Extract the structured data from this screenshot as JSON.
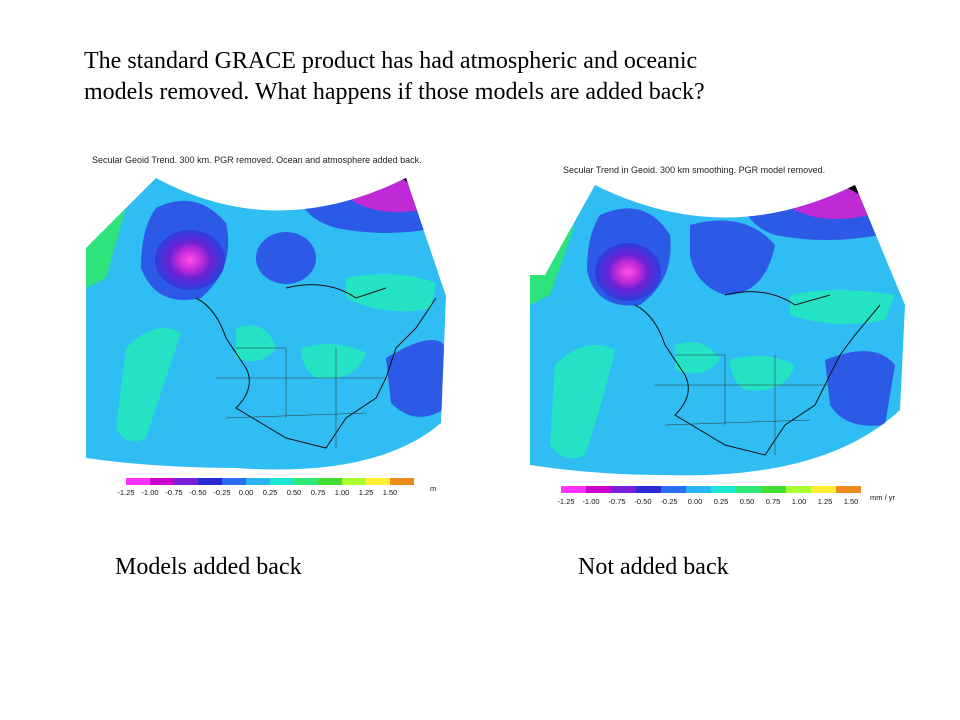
{
  "slide": {
    "headline_line1": "The standard GRACE product has had atmospheric and oceanic",
    "headline_line2": "models removed.  What happens if those models are added back?"
  },
  "maps": [
    {
      "title": "Secular Geoid Trend. 300 km. PGR removed.  Ocean and atmosphere added back.",
      "caption": "Models added back",
      "colorbar_ticks": [
        "-1.25",
        "-1.00",
        "-0.75",
        "-0.50",
        "-0.25",
        "0.00",
        "0.25",
        "0.50",
        "0.75",
        "1.00",
        "1.25",
        "1.50"
      ],
      "unit_label": "m"
    },
    {
      "title": "Secular Trend in Geoid. 300 km smoothing. PGR model removed.",
      "caption": "Not added back",
      "colorbar_ticks": [
        "-1.25",
        "-1.00",
        "-0.75",
        "-0.50",
        "-0.25",
        "0.00",
        "0.25",
        "0.50",
        "0.75",
        "1.00",
        "1.25",
        "1.50"
      ],
      "unit_label": "mm / yr"
    }
  ],
  "colorbar_colors": [
    "#ff33ff",
    "#cc00cc",
    "#7a1fd6",
    "#2a2ad4",
    "#2a6cf2",
    "#29b4f2",
    "#1ee6d2",
    "#2ee87a",
    "#44dd33",
    "#aaff33",
    "#ffee33",
    "#f08a1e"
  ],
  "map_colors": {
    "background": "#2fbdf3",
    "negative_strong": "#1c1ccc",
    "negative": "#2c5ae6",
    "peak": "#e84ad8",
    "positive": "#24e3c4",
    "ocean_edge": "#2ee27c",
    "ice": "#000000",
    "coastline": "#111111"
  }
}
